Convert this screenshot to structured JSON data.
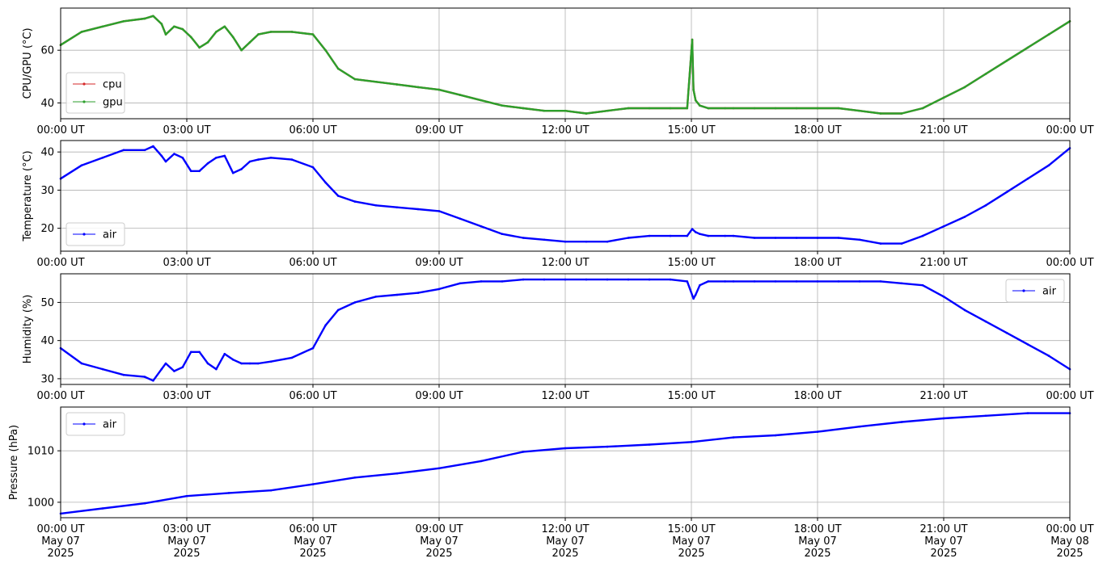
{
  "chart_data": [
    {
      "type": "line",
      "ylabel": "CPU/GPU (°C)",
      "ylim": [
        34,
        76
      ],
      "yticks": [
        40,
        60
      ],
      "xtick_labels": [
        "00:00 UT",
        "03:00 UT",
        "06:00 UT",
        "09:00 UT",
        "12:00 UT",
        "15:00 UT",
        "18:00 UT",
        "21:00 UT",
        "00:00 UT"
      ],
      "xlim": [
        0,
        24
      ],
      "grid": true,
      "legend": "lower-left",
      "series": [
        {
          "name": "cpu",
          "color": "#d62728",
          "x": [
            0,
            0.5,
            1,
            1.5,
            2,
            2.2,
            2.4,
            2.5,
            2.7,
            2.9,
            3.1,
            3.3,
            3.5,
            3.7,
            3.9,
            4.1,
            4.3,
            4.5,
            4.7,
            5,
            5.5,
            6,
            6.3,
            6.6,
            7,
            7.5,
            8,
            8.5,
            9,
            9.5,
            10,
            10.5,
            11,
            11.5,
            12,
            12.5,
            13,
            13.5,
            14,
            14.5,
            14.9,
            15.02,
            15.05,
            15.1,
            15.2,
            15.4,
            15.8,
            16,
            16.5,
            17,
            17.5,
            18,
            18.5,
            19,
            19.5,
            20,
            20.5,
            21,
            21.5,
            22,
            22.5,
            23,
            23.5,
            24
          ],
          "y": [
            62,
            67,
            69,
            71,
            72,
            73,
            70,
            66,
            69,
            68,
            65,
            61,
            63,
            67,
            69,
            65,
            60,
            63,
            66,
            67,
            67,
            66,
            60,
            53,
            49,
            48,
            47,
            46,
            45,
            43,
            41,
            39,
            38,
            37,
            37,
            36,
            37,
            38,
            38,
            38,
            38,
            64,
            45,
            41,
            39,
            38,
            38,
            38,
            38,
            38,
            38,
            38,
            38,
            37,
            36,
            36,
            38,
            42,
            46,
            51,
            56,
            61,
            66,
            71
          ]
        },
        {
          "name": "gpu",
          "color": "#2ca02c",
          "x": [
            0,
            0.5,
            1,
            1.5,
            2,
            2.2,
            2.4,
            2.5,
            2.7,
            2.9,
            3.1,
            3.3,
            3.5,
            3.7,
            3.9,
            4.1,
            4.3,
            4.5,
            4.7,
            5,
            5.5,
            6,
            6.3,
            6.6,
            7,
            7.5,
            8,
            8.5,
            9,
            9.5,
            10,
            10.5,
            11,
            11.5,
            12,
            12.5,
            13,
            13.5,
            14,
            14.5,
            14.9,
            15.02,
            15.05,
            15.1,
            15.2,
            15.4,
            15.8,
            16,
            16.5,
            17,
            17.5,
            18,
            18.5,
            19,
            19.5,
            20,
            20.5,
            21,
            21.5,
            22,
            22.5,
            23,
            23.5,
            24
          ],
          "y": [
            62,
            67,
            69,
            71,
            72,
            73,
            70,
            66,
            69,
            68,
            65,
            61,
            63,
            67,
            69,
            65,
            60,
            63,
            66,
            67,
            67,
            66,
            60,
            53,
            49,
            48,
            47,
            46,
            45,
            43,
            41,
            39,
            38,
            37,
            37,
            36,
            37,
            38,
            38,
            38,
            38,
            64,
            45,
            41,
            39,
            38,
            38,
            38,
            38,
            38,
            38,
            38,
            38,
            37,
            36,
            36,
            38,
            42,
            46,
            51,
            56,
            61,
            66,
            71
          ]
        }
      ]
    },
    {
      "type": "line",
      "ylabel": "Temperature (°C)",
      "ylim": [
        14,
        43
      ],
      "yticks": [
        20,
        30,
        40
      ],
      "xtick_labels": [
        "00:00 UT",
        "03:00 UT",
        "06:00 UT",
        "09:00 UT",
        "12:00 UT",
        "15:00 UT",
        "18:00 UT",
        "21:00 UT",
        "00:00 UT"
      ],
      "xlim": [
        0,
        24
      ],
      "grid": true,
      "legend": "lower-left",
      "series": [
        {
          "name": "air",
          "color": "#0000ff",
          "x": [
            0,
            0.5,
            1,
            1.5,
            2,
            2.2,
            2.4,
            2.5,
            2.7,
            2.9,
            3.1,
            3.3,
            3.5,
            3.7,
            3.9,
            4.1,
            4.3,
            4.5,
            4.7,
            5,
            5.5,
            6,
            6.3,
            6.6,
            7,
            7.5,
            8,
            8.5,
            9,
            9.5,
            10,
            10.5,
            11,
            11.5,
            12,
            12.5,
            13,
            13.5,
            14,
            14.5,
            14.9,
            15.02,
            15.1,
            15.2,
            15.4,
            15.8,
            16,
            16.5,
            17,
            17.5,
            18,
            18.5,
            19,
            19.5,
            20,
            20.5,
            21,
            21.5,
            22,
            22.5,
            23,
            23.5,
            24
          ],
          "y": [
            33,
            36.5,
            38.5,
            40.5,
            40.5,
            41.5,
            39,
            37.5,
            39.5,
            38.5,
            35,
            35,
            37,
            38.5,
            39,
            34.5,
            35.5,
            37.5,
            38,
            38.5,
            38,
            36,
            32,
            28.5,
            27,
            26,
            25.5,
            25,
            24.5,
            22.5,
            20.5,
            18.5,
            17.5,
            17,
            16.5,
            16.5,
            16.5,
            17.5,
            18,
            18,
            18,
            19.8,
            19,
            18.5,
            18,
            18,
            18,
            17.5,
            17.5,
            17.5,
            17.5,
            17.5,
            17,
            16,
            16,
            18,
            20.5,
            23,
            26,
            29.5,
            33,
            36.5,
            41
          ]
        }
      ]
    },
    {
      "type": "line",
      "ylabel": "Humidity (%)",
      "ylim": [
        28.5,
        57.5
      ],
      "yticks": [
        30,
        40,
        50
      ],
      "xtick_labels": [
        "00:00 UT",
        "03:00 UT",
        "06:00 UT",
        "09:00 UT",
        "12:00 UT",
        "15:00 UT",
        "18:00 UT",
        "21:00 UT",
        "00:00 UT"
      ],
      "xlim": [
        0,
        24
      ],
      "grid": true,
      "legend": "upper-right",
      "series": [
        {
          "name": "air",
          "color": "#0000ff",
          "x": [
            0,
            0.5,
            1,
            1.5,
            2,
            2.2,
            2.4,
            2.5,
            2.7,
            2.9,
            3.1,
            3.3,
            3.5,
            3.7,
            3.9,
            4.1,
            4.3,
            4.5,
            4.7,
            5,
            5.5,
            6,
            6.3,
            6.6,
            7,
            7.5,
            8,
            8.5,
            9,
            9.5,
            10,
            10.5,
            11,
            11.5,
            12,
            12.5,
            13,
            13.5,
            14,
            14.5,
            14.9,
            15.05,
            15.1,
            15.2,
            15.4,
            15.8,
            16,
            16.5,
            17,
            17.5,
            18,
            18.5,
            19,
            19.5,
            20,
            20.5,
            21,
            21.5,
            22,
            22.5,
            23,
            23.5,
            24
          ],
          "y": [
            38,
            34,
            32.5,
            31,
            30.5,
            29.5,
            32.5,
            34,
            32,
            33,
            37,
            37,
            34,
            32.5,
            36.5,
            35,
            34,
            34,
            34,
            34.5,
            35.5,
            38,
            44,
            48,
            50,
            51.5,
            52,
            52.5,
            53.5,
            55,
            55.5,
            55.5,
            56,
            56,
            56,
            56,
            56,
            56,
            56,
            56,
            55.5,
            51,
            52,
            54.5,
            55.5,
            55.5,
            55.5,
            55.5,
            55.5,
            55.5,
            55.5,
            55.5,
            55.5,
            55.5,
            55,
            54.5,
            51.5,
            48,
            45,
            42,
            39,
            36,
            32.5
          ]
        }
      ]
    },
    {
      "type": "line",
      "ylabel": "Pressure (hPa)",
      "ylim": [
        997,
        1018.5
      ],
      "yticks": [
        1000,
        1010
      ],
      "xtick_labels": [
        "00:00 UT\nMay 07\n2025",
        "03:00 UT\nMay 07\n2025",
        "06:00 UT\nMay 07\n2025",
        "09:00 UT\nMay 07\n2025",
        "12:00 UT\nMay 07\n2025",
        "15:00 UT\nMay 07\n2025",
        "18:00 UT\nMay 07\n2025",
        "21:00 UT\nMay 07\n2025",
        "00:00 UT\nMay 08\n2025"
      ],
      "xlim": [
        0,
        24
      ],
      "grid": true,
      "legend": "upper-left",
      "series": [
        {
          "name": "air",
          "color": "#0000ff",
          "x": [
            0,
            1,
            2,
            3,
            4,
            5,
            6,
            7,
            8,
            9,
            10,
            11,
            12,
            13,
            14,
            15,
            16,
            17,
            18,
            19,
            20,
            21,
            22,
            23,
            24
          ],
          "y": [
            997.8,
            998.8,
            999.8,
            1001.2,
            1001.8,
            1002.3,
            1003.5,
            1004.8,
            1005.6,
            1006.6,
            1008,
            1009.8,
            1010.5,
            1010.8,
            1011.2,
            1011.7,
            1012.6,
            1013,
            1013.7,
            1014.7,
            1015.6,
            1016.3,
            1016.8,
            1017.3,
            1017.3
          ]
        }
      ]
    }
  ]
}
